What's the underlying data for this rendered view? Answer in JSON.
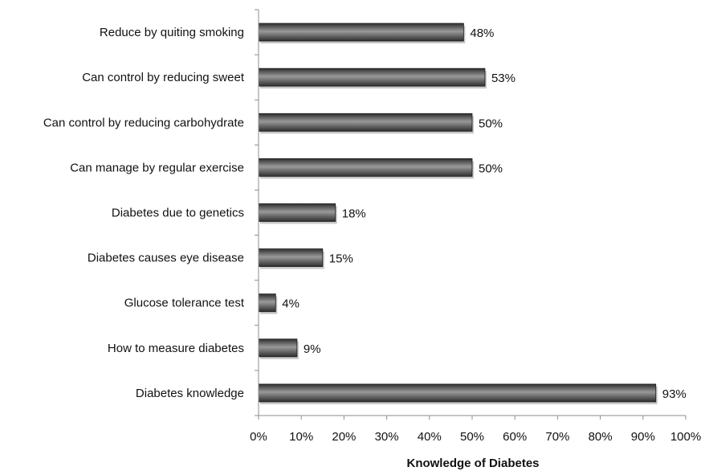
{
  "chart_data": {
    "type": "bar",
    "orientation": "horizontal",
    "categories": [
      "Reduce by quiting smoking",
      "Can control by reducing sweet",
      "Can control by reducing carbohydrate",
      "Can manage by regular exercise",
      "Diabetes due to genetics",
      "Diabetes causes eye disease",
      "Glucose tolerance test",
      "How to measure diabetes",
      "Diabetes knowledge"
    ],
    "values": [
      48,
      53,
      50,
      50,
      18,
      15,
      4,
      9,
      93
    ],
    "value_labels": [
      "48%",
      "53%",
      "50%",
      "50%",
      "18%",
      "15%",
      "4%",
      "9%",
      "93%"
    ],
    "xlim": [
      0,
      100
    ],
    "xticks": [
      0,
      10,
      20,
      30,
      40,
      50,
      60,
      70,
      80,
      90,
      100
    ],
    "xtick_labels": [
      "0%",
      "10%",
      "20%",
      "30%",
      "40%",
      "50%",
      "60%",
      "70%",
      "80%",
      "90%",
      "100%"
    ],
    "xlabel": "Knowledge of Diabetes",
    "ylabel": "",
    "title": "",
    "grid": false,
    "legend": "none",
    "colors": {
      "bar_dark": "#2e2e2e",
      "bar_light": "#9a9a9a",
      "axis": "#8c8c8c"
    }
  }
}
